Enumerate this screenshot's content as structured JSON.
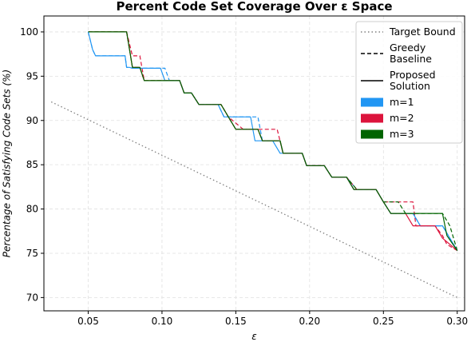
{
  "chart_data": {
    "type": "line",
    "title": "Percent Code Set Coverage Over ε Space",
    "xlabel": "ε",
    "ylabel": "Percentage of Satisfying Code Sets (%)",
    "xlim": [
      0.02,
      0.305
    ],
    "ylim": [
      68.5,
      101.8
    ],
    "xticks": [
      0.05,
      0.1,
      0.15,
      0.2,
      0.25,
      0.3
    ],
    "xtick_labels": [
      "0.05",
      "0.10",
      "0.15",
      "0.20",
      "0.25",
      "0.30"
    ],
    "yticks": [
      70,
      75,
      80,
      85,
      90,
      95,
      100
    ],
    "ytick_labels": [
      "70",
      "75",
      "80",
      "85",
      "90",
      "95",
      "100"
    ],
    "grid": true,
    "legend_position": "top-right",
    "colors": {
      "m1": "#2196f3",
      "m2": "#dc143c",
      "m3": "#006400",
      "bound": "#808080"
    },
    "series": [
      {
        "key": "bound",
        "color": "#808080",
        "style": "dotted",
        "x": [
          0.025,
          0.3
        ],
        "y": [
          92.1,
          70.0
        ]
      },
      {
        "key": "m1-greedy",
        "color": "#2196f3",
        "style": "dashed",
        "x": [
          0.05,
          0.053,
          0.055,
          0.075,
          0.076,
          0.078,
          0.08,
          0.095,
          0.099,
          0.102,
          0.105,
          0.112,
          0.115,
          0.12,
          0.125,
          0.138,
          0.142,
          0.145,
          0.15,
          0.16,
          0.165,
          0.168,
          0.17,
          0.18,
          0.182,
          0.185,
          0.195,
          0.198,
          0.21,
          0.215,
          0.225,
          0.232,
          0.245,
          0.25,
          0.255,
          0.27,
          0.275,
          0.28,
          0.29,
          0.295,
          0.3
        ],
        "y": [
          100.0,
          98.0,
          97.3,
          97.3,
          96.0,
          96.0,
          95.9,
          95.9,
          95.9,
          95.9,
          94.5,
          94.5,
          93.1,
          93.1,
          91.8,
          91.8,
          90.4,
          90.4,
          90.4,
          90.4,
          90.4,
          87.7,
          87.7,
          87.7,
          86.3,
          86.3,
          86.3,
          84.9,
          84.9,
          83.6,
          83.6,
          82.2,
          82.2,
          80.8,
          79.5,
          79.5,
          78.1,
          78.1,
          78.1,
          76.7,
          75.3
        ]
      },
      {
        "key": "m2-greedy",
        "color": "#dc143c",
        "style": "dashed",
        "x": [
          0.05,
          0.076,
          0.08,
          0.085,
          0.088,
          0.1,
          0.105,
          0.112,
          0.115,
          0.12,
          0.125,
          0.14,
          0.145,
          0.155,
          0.165,
          0.168,
          0.172,
          0.178,
          0.182,
          0.185,
          0.195,
          0.198,
          0.21,
          0.215,
          0.225,
          0.232,
          0.245,
          0.25,
          0.27,
          0.272,
          0.28,
          0.285,
          0.29,
          0.293,
          0.3
        ],
        "y": [
          100.0,
          100.0,
          97.3,
          97.3,
          94.5,
          94.5,
          94.5,
          94.5,
          93.1,
          93.1,
          91.8,
          91.8,
          90.4,
          89.0,
          89.0,
          89.0,
          89.0,
          89.0,
          86.3,
          86.3,
          86.3,
          84.9,
          84.9,
          83.6,
          83.6,
          82.2,
          82.2,
          80.8,
          80.8,
          78.1,
          78.1,
          78.1,
          77.0,
          76.0,
          75.3
        ]
      },
      {
        "key": "m3-greedy",
        "color": "#006400",
        "style": "dashed",
        "x": [
          0.05,
          0.076,
          0.08,
          0.085,
          0.088,
          0.1,
          0.105,
          0.112,
          0.115,
          0.12,
          0.125,
          0.14,
          0.145,
          0.15,
          0.165,
          0.168,
          0.175,
          0.18,
          0.182,
          0.185,
          0.195,
          0.198,
          0.21,
          0.215,
          0.225,
          0.232,
          0.245,
          0.25,
          0.26,
          0.265,
          0.29,
          0.295,
          0.3
        ],
        "y": [
          100.0,
          100.0,
          96.0,
          96.0,
          94.5,
          94.5,
          94.5,
          94.5,
          93.1,
          93.1,
          91.8,
          91.8,
          90.4,
          89.0,
          89.0,
          87.7,
          87.7,
          87.7,
          86.3,
          86.3,
          86.3,
          84.9,
          84.9,
          83.6,
          83.6,
          82.2,
          82.2,
          80.8,
          80.8,
          79.5,
          79.5,
          78.1,
          75.3
        ]
      },
      {
        "key": "m1-proposed",
        "color": "#2196f3",
        "style": "solid",
        "x": [
          0.05,
          0.053,
          0.055,
          0.075,
          0.076,
          0.078,
          0.08,
          0.095,
          0.099,
          0.102,
          0.105,
          0.112,
          0.115,
          0.12,
          0.125,
          0.138,
          0.142,
          0.145,
          0.15,
          0.16,
          0.163,
          0.168,
          0.17,
          0.175,
          0.18,
          0.182,
          0.185,
          0.195,
          0.198,
          0.21,
          0.215,
          0.225,
          0.23,
          0.245,
          0.25,
          0.255,
          0.27,
          0.275,
          0.285,
          0.29,
          0.295,
          0.3
        ],
        "y": [
          100.0,
          98.0,
          97.3,
          97.3,
          96.0,
          96.0,
          95.9,
          95.9,
          95.9,
          94.5,
          94.5,
          94.5,
          93.1,
          93.1,
          91.8,
          91.8,
          90.4,
          90.4,
          90.4,
          90.4,
          87.7,
          87.7,
          87.7,
          87.7,
          86.3,
          86.3,
          86.3,
          86.3,
          84.9,
          84.9,
          83.6,
          83.6,
          82.2,
          82.2,
          80.8,
          79.5,
          79.5,
          78.1,
          78.1,
          78.1,
          76.7,
          75.3
        ]
      },
      {
        "key": "m2-proposed",
        "color": "#dc143c",
        "style": "solid",
        "x": [
          0.05,
          0.076,
          0.08,
          0.085,
          0.088,
          0.1,
          0.105,
          0.112,
          0.115,
          0.12,
          0.125,
          0.14,
          0.145,
          0.15,
          0.165,
          0.168,
          0.175,
          0.18,
          0.182,
          0.185,
          0.195,
          0.198,
          0.21,
          0.215,
          0.225,
          0.23,
          0.245,
          0.25,
          0.255,
          0.265,
          0.27,
          0.28,
          0.285,
          0.29,
          0.3
        ],
        "y": [
          100.0,
          100.0,
          96.0,
          96.0,
          94.5,
          94.5,
          94.5,
          94.5,
          93.1,
          93.1,
          91.8,
          91.8,
          90.4,
          89.0,
          89.0,
          87.7,
          87.7,
          87.7,
          86.3,
          86.3,
          86.3,
          84.9,
          84.9,
          83.6,
          83.6,
          82.2,
          82.2,
          80.8,
          79.5,
          79.5,
          78.1,
          78.1,
          78.1,
          76.7,
          75.3
        ]
      },
      {
        "key": "m3-proposed",
        "color": "#006400",
        "style": "solid",
        "x": [
          0.05,
          0.076,
          0.08,
          0.085,
          0.088,
          0.1,
          0.105,
          0.112,
          0.115,
          0.12,
          0.125,
          0.14,
          0.145,
          0.15,
          0.165,
          0.168,
          0.175,
          0.18,
          0.182,
          0.185,
          0.195,
          0.198,
          0.21,
          0.215,
          0.225,
          0.23,
          0.245,
          0.25,
          0.255,
          0.265,
          0.28,
          0.29,
          0.293,
          0.3
        ],
        "y": [
          100.0,
          100.0,
          96.0,
          96.0,
          94.5,
          94.5,
          94.5,
          94.5,
          93.1,
          93.1,
          91.8,
          91.8,
          90.4,
          89.0,
          89.0,
          87.7,
          87.7,
          87.7,
          86.3,
          86.3,
          86.3,
          84.9,
          84.9,
          83.6,
          83.6,
          82.2,
          82.2,
          80.8,
          79.5,
          79.5,
          79.5,
          79.5,
          77.0,
          75.3
        ]
      }
    ],
    "legend": [
      {
        "label": "Target Bound",
        "kind": "line",
        "style": "dotted",
        "color": "#808080"
      },
      {
        "label": "Greedy\nBaseline",
        "kind": "line",
        "style": "dashed",
        "color": "#000000"
      },
      {
        "label": "Proposed\nSolution",
        "kind": "line",
        "style": "solid",
        "color": "#000000"
      },
      {
        "label": "m=1",
        "kind": "patch",
        "color": "#2196f3"
      },
      {
        "label": "m=2",
        "kind": "patch",
        "color": "#dc143c"
      },
      {
        "label": "m=3",
        "kind": "patch",
        "color": "#006400"
      }
    ]
  }
}
